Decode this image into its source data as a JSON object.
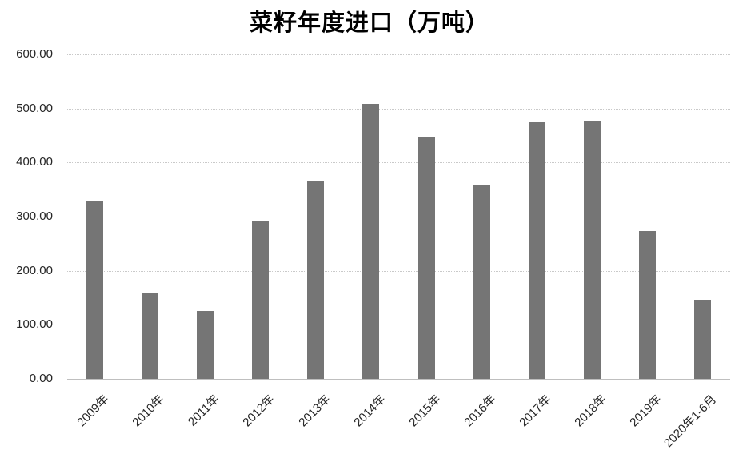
{
  "chart_data": {
    "type": "bar",
    "title": "菜籽年度进口（万吨）",
    "categories": [
      "2009年",
      "2010年",
      "2011年",
      "2012年",
      "2013年",
      "2014年",
      "2015年",
      "2016年",
      "2017年",
      "2018年",
      "2019年",
      "2020年1-6月"
    ],
    "values": [
      329,
      159,
      126,
      293,
      366,
      508,
      447,
      357,
      475,
      478,
      274,
      147
    ],
    "xlabel": "",
    "ylabel": "",
    "ylim": [
      0,
      600
    ],
    "ytick_step": 100,
    "ytick_labels": [
      "0.00",
      "100.00",
      "200.00",
      "300.00",
      "400.00",
      "500.00",
      "600.00"
    ],
    "grid": "horizontal-dotted",
    "legend_position": "none",
    "colors": {
      "bar": "#757575",
      "gridline": "#c9c9c9",
      "axis_line": "#bfbfbf",
      "tick_text": "#262626",
      "title_text": "#000000",
      "background": "#ffffff"
    }
  }
}
